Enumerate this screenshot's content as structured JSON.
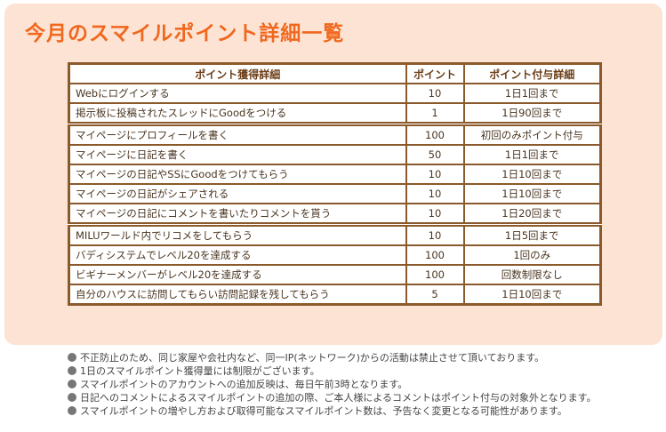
{
  "header": {
    "title": "今月のスマイルポイント詳細一覧"
  },
  "table": {
    "columns": [
      "ポイント獲得詳細",
      "ポイント",
      "ポイント付与詳細"
    ],
    "groups": [
      [
        [
          "Webにログインする",
          10,
          "1日1回まで"
        ],
        [
          "掲示板に投稿されたスレッドにGoodをつける",
          1,
          "1日90回まで"
        ]
      ],
      [
        [
          "マイページにプロフィールを書く",
          100,
          "初回のみポイント付与"
        ],
        [
          "マイページに日記を書く",
          50,
          "1日1回まで"
        ],
        [
          "マイページの日記やSSにGoodをつけてもらう",
          10,
          "1日10回まで"
        ],
        [
          "マイページの日記がシェアされる",
          10,
          "1日10回まで"
        ],
        [
          "マイページの日記にコメントを書いたりコメントを貰う",
          10,
          "1日20回まで"
        ]
      ],
      [
        [
          "MILUワールド内でリコメをしてもらう",
          10,
          "1日5回まで"
        ],
        [
          "バディシステムでレベル20を達成する",
          100,
          "1回のみ"
        ],
        [
          "ビギナーメンバーがレベル20を達成する",
          100,
          "回数制限なし"
        ],
        [
          "自分のハウスに訪問してもらい訪問記録を残してもらう",
          5,
          "1日10回まで"
        ]
      ]
    ]
  },
  "notes": [
    "不正防止のため、同じ家屋や会社内など、同一IP(ネットワーク)からの活動は禁止させて頂いております。",
    "1日のスマイルポイント獲得量には制限がございます。",
    "スマイルポイントのアカウントへの追加反映は、毎日午前3時となります。",
    "日記へのコメントによるスマイルポイントの追加の際、ご本人様によるコメントはポイント付与の対象外となります。",
    "スマイルポイントの増やし方および取得可能なスマイルポイント数は、予告なく変更となる可能性があります。"
  ]
}
